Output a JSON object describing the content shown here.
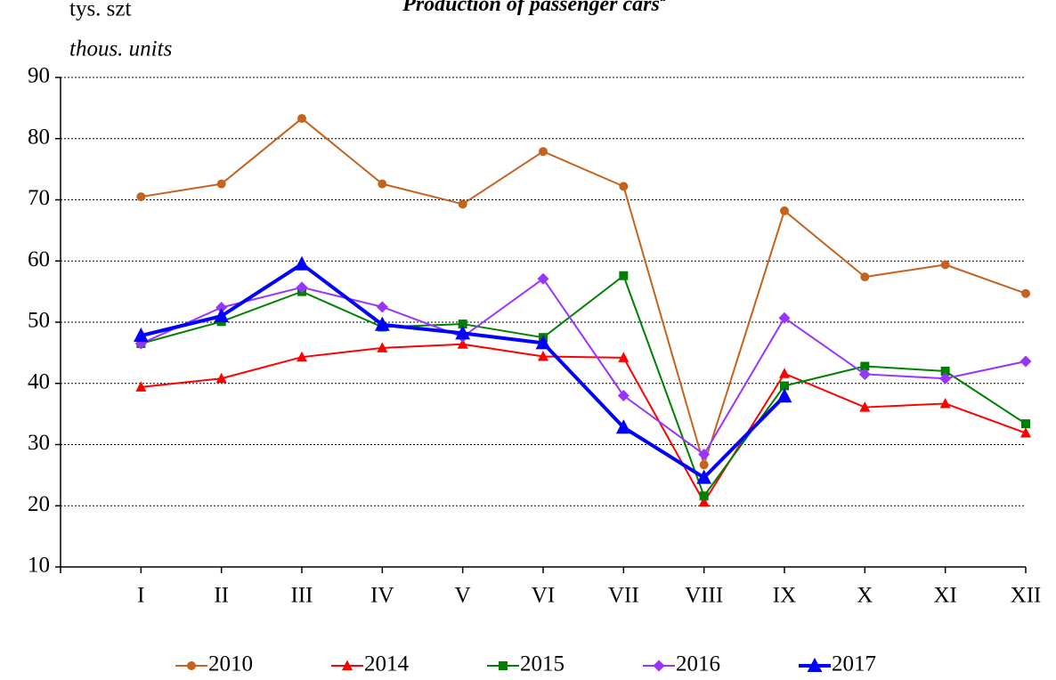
{
  "chart_data": {
    "type": "line",
    "title": "Production of passenger cars",
    "title_note": "a",
    "y_label": "tys. szt",
    "y_label_en": "thous. units",
    "categories": [
      "I",
      "II",
      "III",
      "IV",
      "V",
      "VI",
      "VII",
      "VIII",
      "IX",
      "X",
      "XI",
      "XII"
    ],
    "series": [
      {
        "name": "2010",
        "color": "#c5621e",
        "marker": "circle",
        "line_width": 2,
        "values": [
          70.5,
          72.6,
          83.3,
          72.6,
          69.3,
          77.9,
          72.2,
          26.7,
          68.2,
          57.4,
          59.4,
          54.7
        ]
      },
      {
        "name": "2014",
        "color": "#ff0000",
        "marker": "triangle",
        "line_width": 2,
        "values": [
          39.4,
          40.8,
          44.3,
          45.8,
          46.4,
          44.4,
          44.2,
          20.6,
          41.6,
          36.1,
          36.7,
          31.9
        ]
      },
      {
        "name": "2015",
        "color": "#008000",
        "marker": "square",
        "line_width": 2,
        "values": [
          46.5,
          50.1,
          55.0,
          49.2,
          49.7,
          47.5,
          57.6,
          21.6,
          39.6,
          42.8,
          42.0,
          33.4
        ]
      },
      {
        "name": "2016",
        "color": "#9933ff",
        "marker": "diamond",
        "line_width": 2,
        "values": [
          46.5,
          52.4,
          55.7,
          52.5,
          47.6,
          57.1,
          38.0,
          28.4,
          50.7,
          41.5,
          40.8,
          43.6
        ]
      },
      {
        "name": "2017",
        "color": "#0000ff",
        "marker": "triangle",
        "line_width": 4,
        "values": [
          47.8,
          51.0,
          59.5,
          49.6,
          48.2,
          46.6,
          32.8,
          24.6,
          37.9,
          null,
          null,
          null
        ]
      }
    ],
    "ylim": [
      10,
      90
    ],
    "yticks": [
      10,
      20,
      30,
      40,
      50,
      60,
      70,
      80,
      90
    ],
    "grid": true,
    "legend": "bottom"
  }
}
